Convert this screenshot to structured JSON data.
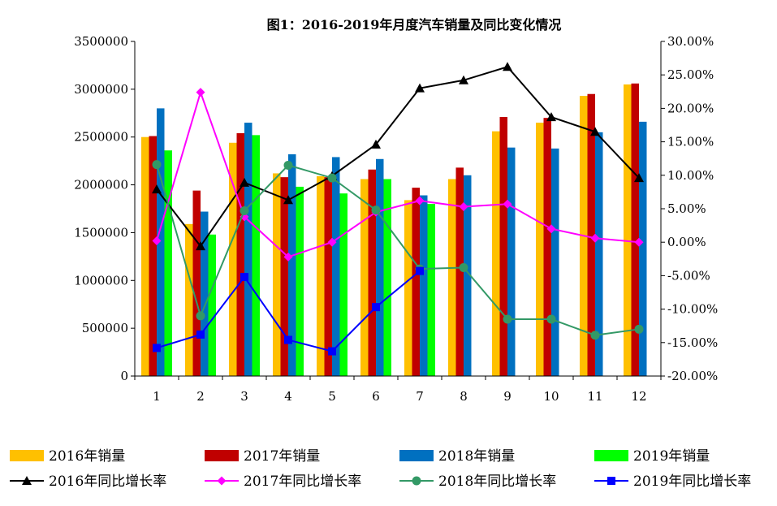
{
  "chart_data": {
    "type": "bar",
    "title": "图1：2016-2019年月度汽车销量及同比变化情况",
    "categories": [
      "1",
      "2",
      "3",
      "4",
      "5",
      "6",
      "7",
      "8",
      "9",
      "10",
      "11",
      "12"
    ],
    "ylim_left": [
      0,
      3500000
    ],
    "ylim_right": [
      -20,
      30
    ],
    "y_ticks_left": [
      "0",
      "500000",
      "1000000",
      "1500000",
      "2000000",
      "2500000",
      "3000000",
      "3500000"
    ],
    "y_ticks_right": [
      "-20.00%",
      "-15.00%",
      "-10.00%",
      "-5.00%",
      "0.00%",
      "5.00%",
      "10.00%",
      "15.00%",
      "20.00%",
      "25.00%",
      "30.00%"
    ],
    "grid": false,
    "legend_position": "bottom",
    "bar_series": [
      {
        "name": "2016年销量",
        "color": "#FFC000",
        "values": [
          2500000,
          1590000,
          2440000,
          2120000,
          2090000,
          2060000,
          1840000,
          2060000,
          2560000,
          2650000,
          2930000,
          3050000
        ]
      },
      {
        "name": "2017年销量",
        "color": "#C00000",
        "values": [
          2510000,
          1940000,
          2540000,
          2080000,
          2080000,
          2160000,
          1970000,
          2180000,
          2710000,
          2700000,
          2950000,
          3060000
        ]
      },
      {
        "name": "2018年销量",
        "color": "#0070C0",
        "values": [
          2800000,
          1720000,
          2650000,
          2320000,
          2290000,
          2270000,
          1890000,
          2100000,
          2390000,
          2380000,
          2550000,
          2660000
        ]
      },
      {
        "name": "2019年销量",
        "color": "#00FF00",
        "values": [
          2360000,
          1480000,
          2520000,
          1980000,
          1910000,
          2060000,
          1800000,
          null,
          null,
          null,
          null,
          null
        ]
      }
    ],
    "line_series": [
      {
        "name": "2016年同比增长率",
        "color": "#000000",
        "marker": "triangle",
        "values": [
          7.9,
          -0.6,
          8.9,
          6.3,
          9.9,
          14.6,
          23.0,
          24.2,
          26.2,
          18.7,
          16.5,
          9.6
        ]
      },
      {
        "name": "2017年同比增长率",
        "color": "#FF00FF",
        "marker": "diamond",
        "values": [
          0.2,
          22.4,
          3.8,
          -2.2,
          0.0,
          4.5,
          6.2,
          5.3,
          5.7,
          2.0,
          0.6,
          0.0
        ]
      },
      {
        "name": "2018年同比增长率",
        "color": "#339966",
        "marker": "circle",
        "values": [
          11.6,
          -11.0,
          4.7,
          11.5,
          9.6,
          4.8,
          -4.0,
          -3.8,
          -11.5,
          -11.5,
          -13.9,
          -13.0
        ]
      },
      {
        "name": "2019年同比增长率",
        "color": "#0000FF",
        "marker": "square",
        "values": [
          -15.8,
          -13.8,
          -5.2,
          -14.6,
          -16.3,
          -9.7,
          -4.3,
          null,
          null,
          null,
          null,
          null
        ]
      }
    ]
  }
}
